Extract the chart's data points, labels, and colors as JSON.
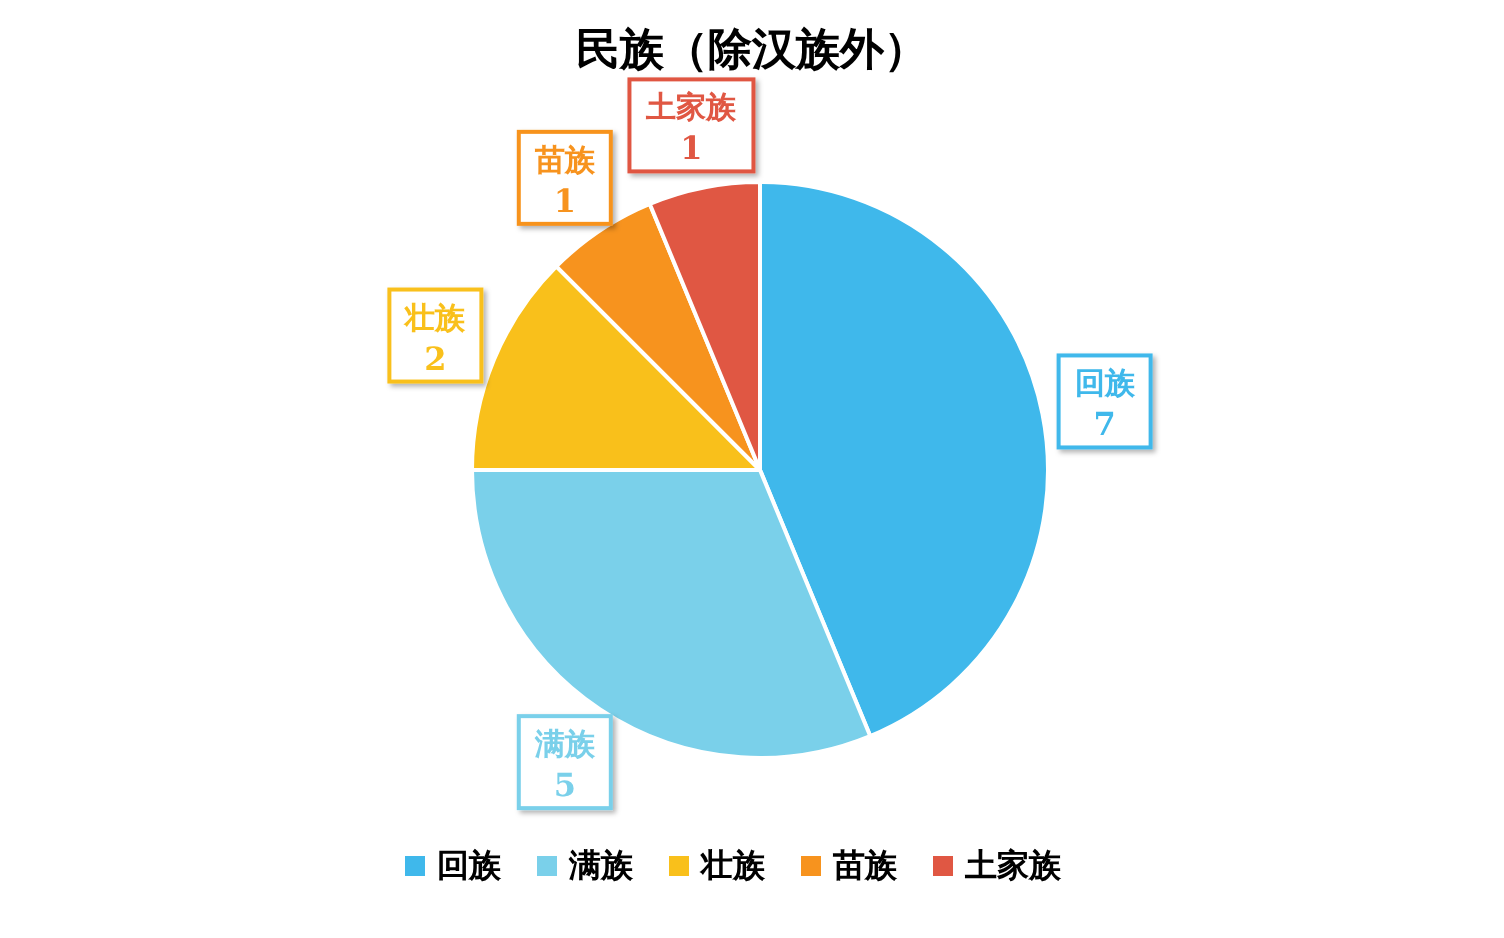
{
  "chart_data": {
    "type": "pie",
    "title": "民族（除汉族外）",
    "categories": [
      "回族",
      "满族",
      "壮族",
      "苗族",
      "土家族"
    ],
    "values": [
      7,
      5,
      2,
      1,
      1
    ],
    "colors": [
      "#3fb8eb",
      "#7ad0ea",
      "#f9c01b",
      "#f7931e",
      "#e05743"
    ],
    "data_labels": true,
    "legend": "bottom"
  }
}
